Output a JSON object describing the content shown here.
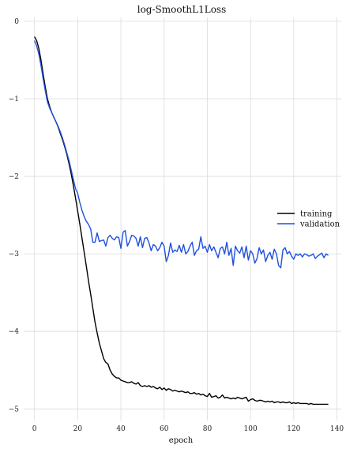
{
  "chart_data": {
    "type": "line",
    "title": "log-SmoothL1Loss",
    "xlabel": "epoch",
    "ylabel": "",
    "xlim": [
      -5,
      142
    ],
    "ylim": [
      -5.15,
      0.05
    ],
    "xticks": [
      0,
      20,
      40,
      60,
      80,
      100,
      120,
      140
    ],
    "yticks": [
      0,
      -1,
      -2,
      -3,
      -4,
      -5
    ],
    "grid": true,
    "legend_position": "right",
    "series": [
      {
        "name": "training",
        "color": "#000000",
        "x": [
          0,
          1,
          2,
          3,
          4,
          5,
          6,
          7,
          8,
          9,
          10,
          11,
          12,
          13,
          14,
          15,
          16,
          17,
          18,
          19,
          20,
          21,
          22,
          23,
          24,
          25,
          26,
          27,
          28,
          29,
          30,
          31,
          32,
          33,
          34,
          35,
          36,
          37,
          38,
          39,
          40,
          41,
          42,
          43,
          44,
          45,
          46,
          47,
          48,
          49,
          50,
          51,
          52,
          53,
          54,
          55,
          56,
          57,
          58,
          59,
          60,
          61,
          62,
          63,
          64,
          65,
          66,
          67,
          68,
          69,
          70,
          71,
          72,
          73,
          74,
          75,
          76,
          77,
          78,
          79,
          80,
          81,
          82,
          83,
          84,
          85,
          86,
          87,
          88,
          89,
          90,
          91,
          92,
          93,
          94,
          95,
          96,
          97,
          98,
          99,
          100,
          101,
          102,
          103,
          104,
          105,
          106,
          107,
          108,
          109,
          110,
          111,
          112,
          113,
          114,
          115,
          116,
          117,
          118,
          119,
          120,
          121,
          122,
          123,
          124,
          125,
          126,
          127,
          128,
          129,
          130,
          131,
          132,
          133,
          134,
          135,
          136
        ],
        "y": [
          -0.2,
          -0.25,
          -0.35,
          -0.5,
          -0.68,
          -0.85,
          -1.0,
          -1.1,
          -1.18,
          -1.24,
          -1.3,
          -1.37,
          -1.45,
          -1.53,
          -1.62,
          -1.72,
          -1.84,
          -1.97,
          -2.12,
          -2.28,
          -2.45,
          -2.62,
          -2.8,
          -2.98,
          -3.16,
          -3.35,
          -3.52,
          -3.7,
          -3.88,
          -4.02,
          -4.15,
          -4.25,
          -4.35,
          -4.4,
          -4.42,
          -4.5,
          -4.55,
          -4.58,
          -4.6,
          -4.6,
          -4.63,
          -4.64,
          -4.65,
          -4.66,
          -4.66,
          -4.65,
          -4.67,
          -4.68,
          -4.66,
          -4.7,
          -4.71,
          -4.7,
          -4.71,
          -4.7,
          -4.72,
          -4.71,
          -4.73,
          -4.74,
          -4.72,
          -4.75,
          -4.73,
          -4.76,
          -4.74,
          -4.75,
          -4.77,
          -4.76,
          -4.77,
          -4.78,
          -4.77,
          -4.78,
          -4.79,
          -4.78,
          -4.8,
          -4.8,
          -4.79,
          -4.81,
          -4.8,
          -4.82,
          -4.81,
          -4.83,
          -4.84,
          -4.8,
          -4.85,
          -4.84,
          -4.83,
          -4.86,
          -4.85,
          -4.82,
          -4.86,
          -4.85,
          -4.86,
          -4.87,
          -4.86,
          -4.87,
          -4.85,
          -4.86,
          -4.87,
          -4.86,
          -4.85,
          -4.9,
          -4.88,
          -4.87,
          -4.89,
          -4.9,
          -4.89,
          -4.89,
          -4.9,
          -4.91,
          -4.9,
          -4.91,
          -4.9,
          -4.92,
          -4.91,
          -4.91,
          -4.92,
          -4.91,
          -4.92,
          -4.92,
          -4.91,
          -4.93,
          -4.92,
          -4.93,
          -4.92,
          -4.93,
          -4.93,
          -4.93,
          -4.93,
          -4.94,
          -4.93,
          -4.94,
          -4.94,
          -4.94,
          -4.94,
          -4.94,
          -4.94,
          -4.94,
          -4.94
        ]
      },
      {
        "name": "validation",
        "color": "#1f4fe0",
        "x": [
          0,
          1,
          2,
          3,
          4,
          5,
          6,
          7,
          8,
          9,
          10,
          11,
          12,
          13,
          14,
          15,
          16,
          17,
          18,
          19,
          20,
          21,
          22,
          23,
          24,
          25,
          26,
          27,
          28,
          29,
          30,
          31,
          32,
          33,
          34,
          35,
          36,
          37,
          38,
          39,
          40,
          41,
          42,
          43,
          44,
          45,
          46,
          47,
          48,
          49,
          50,
          51,
          52,
          53,
          54,
          55,
          56,
          57,
          58,
          59,
          60,
          61,
          62,
          63,
          64,
          65,
          66,
          67,
          68,
          69,
          70,
          71,
          72,
          73,
          74,
          75,
          76,
          77,
          78,
          79,
          80,
          81,
          82,
          83,
          84,
          85,
          86,
          87,
          88,
          89,
          90,
          91,
          92,
          93,
          94,
          95,
          96,
          97,
          98,
          99,
          100,
          101,
          102,
          103,
          104,
          105,
          106,
          107,
          108,
          109,
          110,
          111,
          112,
          113,
          114,
          115,
          116,
          117,
          118,
          119,
          120,
          121,
          122,
          123,
          124,
          125,
          126,
          127,
          128,
          129,
          130,
          131,
          132,
          133,
          134,
          135,
          136
        ],
        "y": [
          -0.25,
          -0.32,
          -0.42,
          -0.57,
          -0.74,
          -0.9,
          -1.04,
          -1.12,
          -1.18,
          -1.24,
          -1.3,
          -1.36,
          -1.43,
          -1.51,
          -1.6,
          -1.7,
          -1.8,
          -1.92,
          -2.04,
          -2.16,
          -2.22,
          -2.34,
          -2.44,
          -2.52,
          -2.58,
          -2.62,
          -2.68,
          -2.85,
          -2.85,
          -2.73,
          -2.84,
          -2.83,
          -2.82,
          -2.9,
          -2.79,
          -2.76,
          -2.8,
          -2.82,
          -2.78,
          -2.79,
          -2.93,
          -2.72,
          -2.7,
          -2.9,
          -2.84,
          -2.76,
          -2.77,
          -2.8,
          -2.9,
          -2.78,
          -2.92,
          -2.8,
          -2.79,
          -2.86,
          -2.96,
          -2.88,
          -2.9,
          -2.96,
          -2.92,
          -2.85,
          -2.9,
          -3.1,
          -3.02,
          -2.86,
          -2.98,
          -2.95,
          -2.97,
          -2.89,
          -2.98,
          -2.88,
          -3.0,
          -2.97,
          -2.9,
          -2.85,
          -3.02,
          -2.96,
          -2.94,
          -2.78,
          -2.93,
          -2.9,
          -2.98,
          -2.88,
          -2.96,
          -2.91,
          -2.98,
          -3.05,
          -2.93,
          -2.91,
          -3.0,
          -2.85,
          -3.02,
          -2.93,
          -3.15,
          -2.9,
          -2.96,
          -2.99,
          -2.91,
          -3.05,
          -2.9,
          -3.08,
          -2.96,
          -3.0,
          -3.12,
          -3.06,
          -2.92,
          -3.0,
          -2.95,
          -3.1,
          -3.02,
          -2.98,
          -3.07,
          -2.94,
          -3.0,
          -3.15,
          -3.18,
          -2.95,
          -2.92,
          -3.0,
          -2.97,
          -3.03,
          -3.07,
          -3.0,
          -3.02,
          -3.0,
          -3.04,
          -3.0,
          -3.01,
          -3.03,
          -3.02,
          -3.0,
          -3.06,
          -3.03,
          -3.01,
          -2.99,
          -3.05,
          -3.0,
          -3.02
        ]
      }
    ]
  }
}
